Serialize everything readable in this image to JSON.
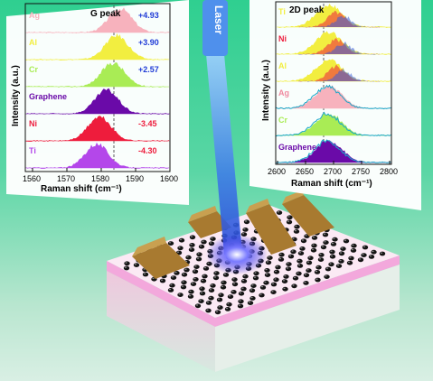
{
  "left_panel": {
    "title": "G peak",
    "ylabel": "Intensity (a.u.)",
    "xlabel": "Raman shift (cm⁻¹)",
    "ticks": [
      "1560",
      "1570",
      "1580",
      "1590",
      "1600"
    ],
    "spectra": [
      {
        "label": "Ag",
        "shift": "+4.93",
        "color": "#f7b2bd",
        "shift_color": "#1f3bd6"
      },
      {
        "label": "Al",
        "shift": "+3.90",
        "color": "#f2ee40",
        "shift_color": "#1f3bd6"
      },
      {
        "label": "Cr",
        "shift": "+2.57",
        "color": "#a9ec55",
        "shift_color": "#1f3bd6"
      },
      {
        "label": "Graphene",
        "shift": "",
        "color": "#6a0aa8",
        "shift_color": "#1f3bd6"
      },
      {
        "label": "Ni",
        "shift": "-3.45",
        "color": "#ee1c3c",
        "shift_color": "#ee1c3c"
      },
      {
        "label": "Ti",
        "shift": "-4.30",
        "color": "#b447ea",
        "shift_color": "#ee1c3c"
      }
    ]
  },
  "right_panel": {
    "title": "2D peak",
    "ylabel": "Intensity (a.u.)",
    "xlabel": "Raman shift (cm⁻¹)",
    "ticks": [
      "2600",
      "2650",
      "2700",
      "2750",
      "2800"
    ],
    "spectra": [
      {
        "label": "Ti",
        "color": "#f2ee40"
      },
      {
        "label": "Ni",
        "color": "#f2ee40"
      },
      {
        "label": "Al",
        "color": "#f2ee40"
      },
      {
        "label": "Ag",
        "color": "#f7b2bd"
      },
      {
        "label": "Cr",
        "color": "#a9ec55"
      },
      {
        "label": "Graphene",
        "color": "#6a0aa8"
      }
    ]
  },
  "laser": {
    "label": "Laser",
    "color": "#3b7fe6"
  },
  "colors": {
    "substrate_top": "#fbeaf3",
    "substrate_side": "#f2d9e6",
    "electrode": "#b8893a",
    "atom": "#161616"
  }
}
